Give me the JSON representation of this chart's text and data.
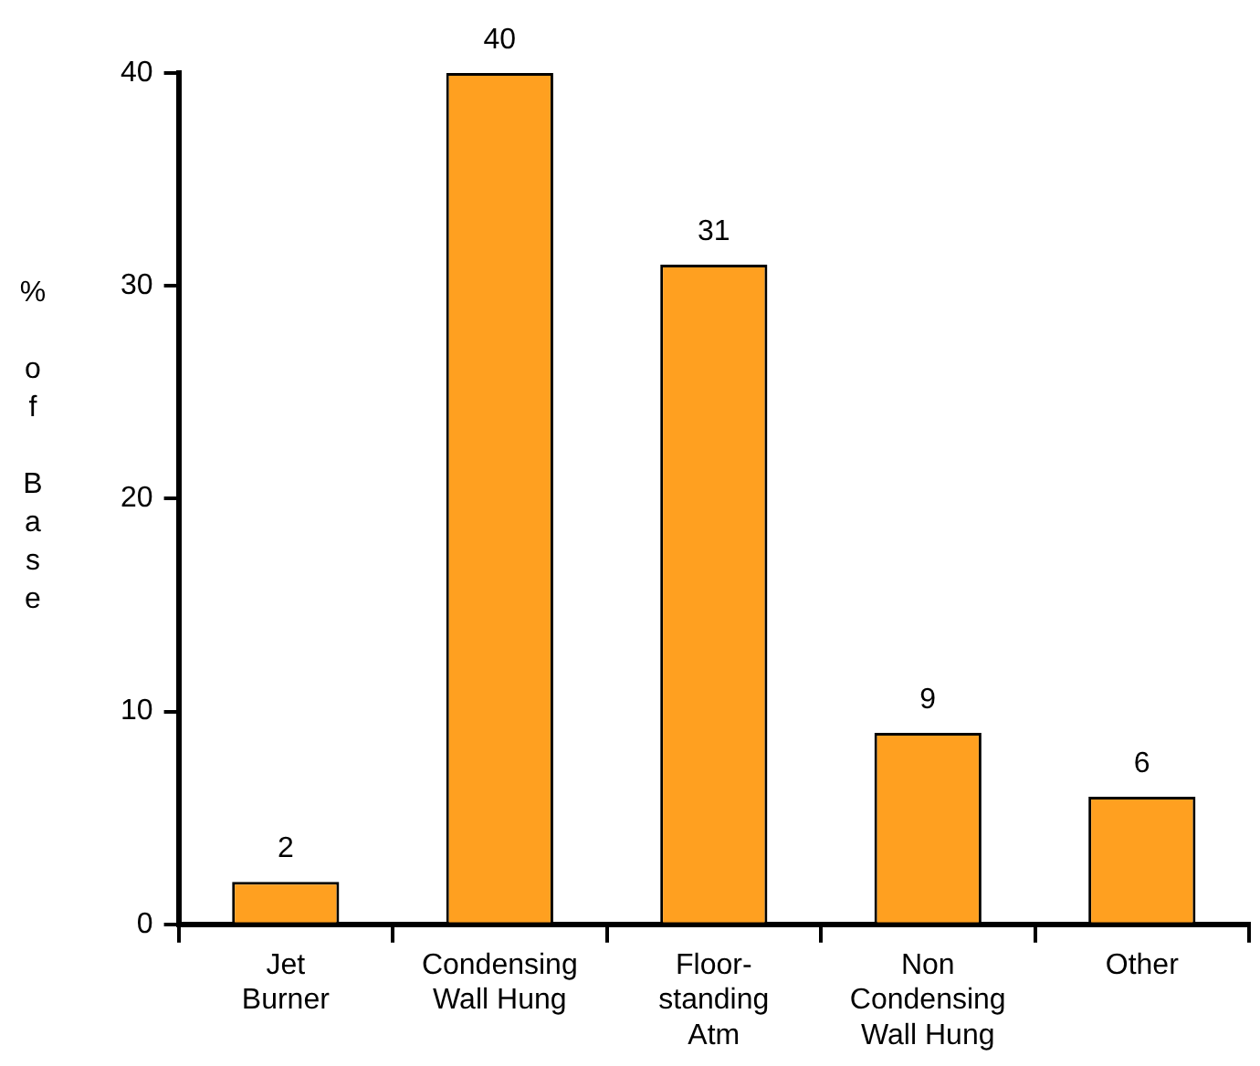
{
  "chart_data": {
    "type": "bar",
    "ylabel": "% of Base",
    "categories": [
      "Jet Burner",
      "Condensing Wall Hung",
      "Floor-standing Atm",
      "Non Condensing Wall Hung",
      "Other"
    ],
    "values": [
      2,
      40,
      31,
      9,
      6
    ],
    "color": "#ffa020",
    "ylim": [
      0,
      40
    ],
    "yticks": [
      0,
      10,
      20,
      30,
      40
    ],
    "grid": false,
    "legend": false,
    "data_labels": true
  }
}
